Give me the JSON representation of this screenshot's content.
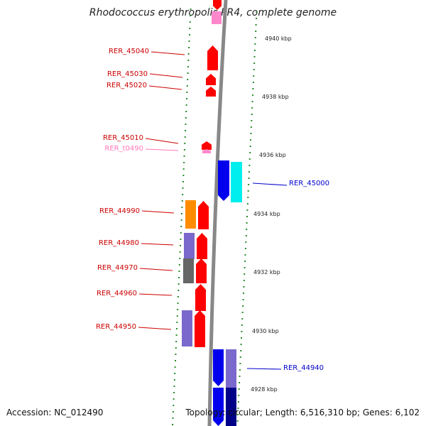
{
  "title": "Rhodococcus erythropolis PR4, complete genome",
  "footer": {
    "accession": "Accession: NC_012490",
    "summary": "Topology: circular; Length: 6,516,310 bp; Genes: 6,102"
  },
  "colors": {
    "backbone": "#888888",
    "tick": "#2a8a2a",
    "red_gene": "#ff0000",
    "blue_gene": "#0000ee",
    "cyan_gene": "#00eeee",
    "purple_gene": "#7b68cc",
    "orange_gene": "#ff8c00",
    "gray_gene": "#666666",
    "pink_gene": "#ff88cc",
    "navy_gene": "#000088",
    "label_red": "#cc0000",
    "label_blue": "#0000cc",
    "label_pink": "#ff77bb"
  },
  "kbp_labels": [
    "4940 kbp",
    "4938 kbp",
    "4936 kbp",
    "4934 kbp",
    "4932 kbp",
    "4930 kbp",
    "4928 kbp"
  ],
  "locus_labels": [
    {
      "text": "RER_45040",
      "color": "label_red"
    },
    {
      "text": "RER_45030",
      "color": "label_red"
    },
    {
      "text": "RER_45020",
      "color": "label_red"
    },
    {
      "text": "RER_45010",
      "color": "label_red"
    },
    {
      "text": "RER_t0490",
      "color": "label_pink"
    },
    {
      "text": "RER_45000",
      "color": "label_blue"
    },
    {
      "text": "RER_44990",
      "color": "label_red"
    },
    {
      "text": "RER_44980",
      "color": "label_red"
    },
    {
      "text": "RER_44970",
      "color": "label_red"
    },
    {
      "text": "RER_44960",
      "color": "label_red"
    },
    {
      "text": "RER_44950",
      "color": "label_red"
    },
    {
      "text": "RER_44940",
      "color": "label_blue"
    }
  ]
}
